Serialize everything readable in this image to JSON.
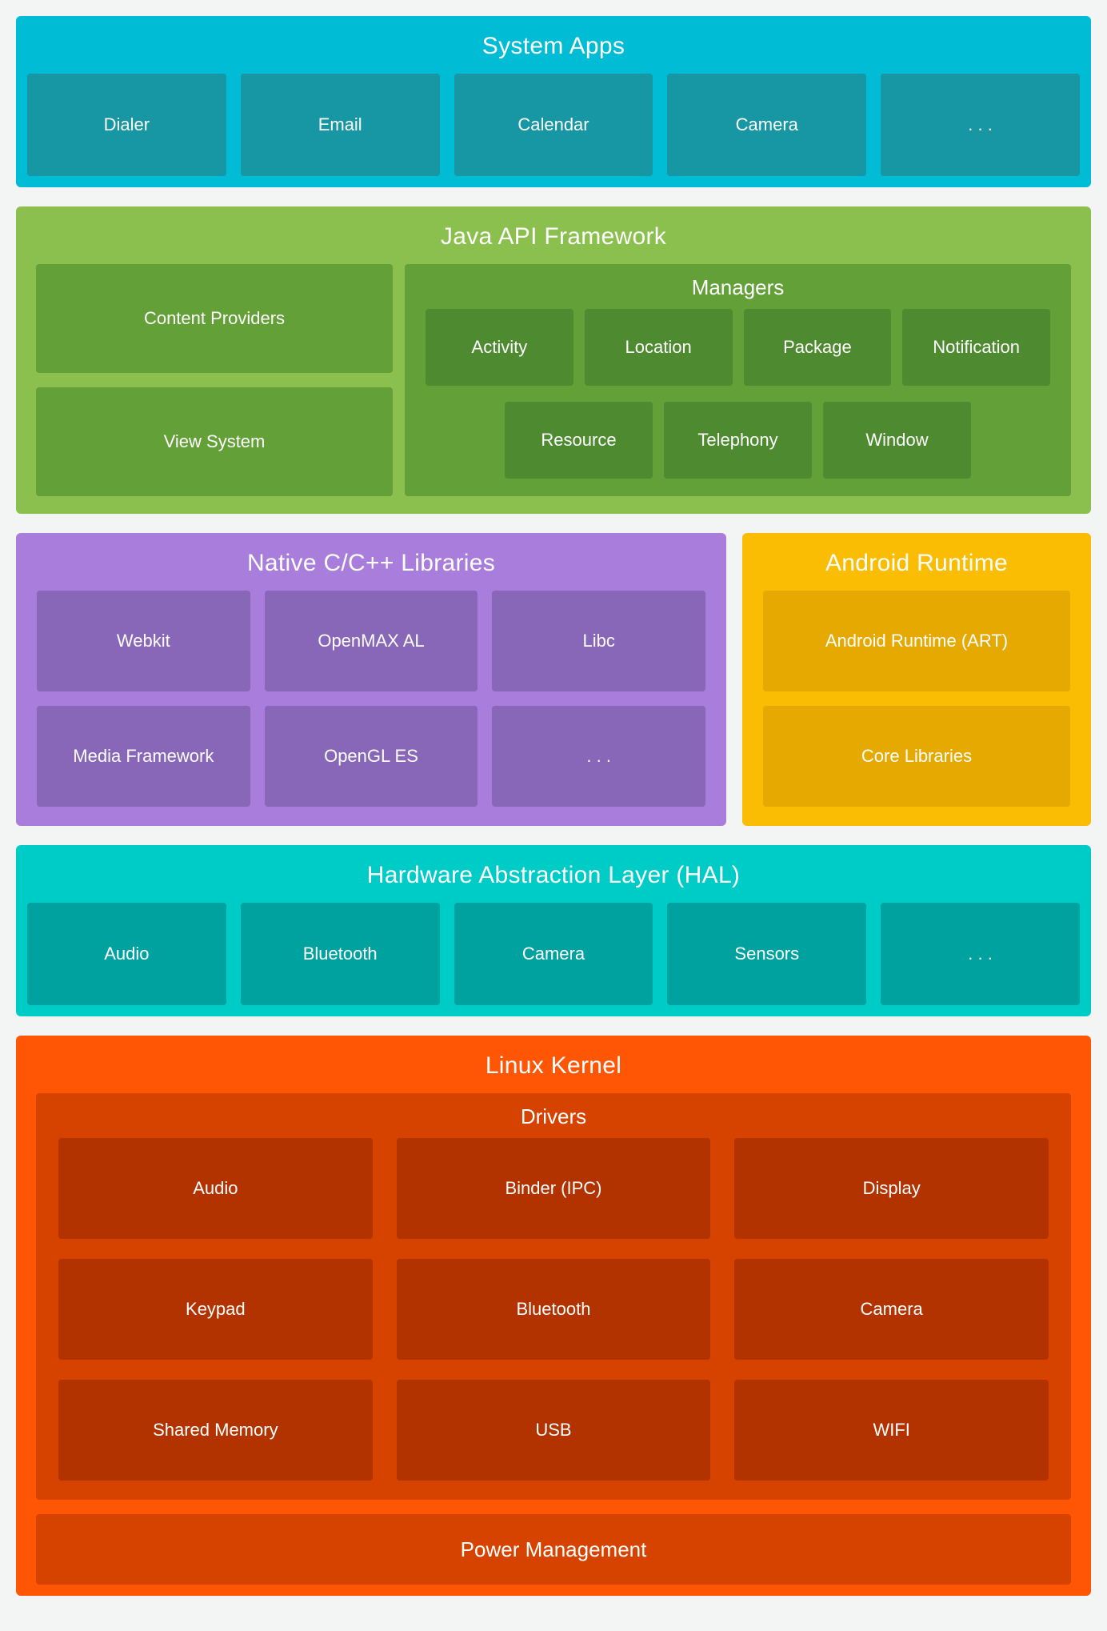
{
  "page": {
    "background": "#F3F4F4"
  },
  "system_apps": {
    "title": "System Apps",
    "colors": {
      "bg": "#00BCD4",
      "box": "#1697A3"
    },
    "boxes": [
      "Dialer",
      "Email",
      "Calendar",
      "Camera",
      ". . ."
    ]
  },
  "java_api": {
    "title": "Java API Framework",
    "colors": {
      "bg": "#8BC04E",
      "box": "#64A038",
      "inner_box": "#4E8A2F"
    },
    "left_boxes": [
      "Content Providers",
      "View System"
    ],
    "managers": {
      "title": "Managers",
      "row1": [
        "Activity",
        "Location",
        "Package",
        "Notification"
      ],
      "row2": [
        "Resource",
        "Telephony",
        "Window"
      ]
    }
  },
  "native_libs": {
    "title": "Native C/C++ Libraries",
    "colors": {
      "bg": "#A97DDB",
      "box": "#8866B8"
    },
    "boxes": [
      "Webkit",
      "OpenMAX AL",
      "Libc",
      "Media Framework",
      "OpenGL ES",
      ". . ."
    ]
  },
  "android_runtime": {
    "title": "Android Runtime",
    "colors": {
      "bg": "#FBBC04",
      "box": "#E6A902"
    },
    "boxes": [
      "Android Runtime (ART)",
      "Core Libraries"
    ]
  },
  "hal": {
    "title": "Hardware Abstraction Layer (HAL)",
    "colors": {
      "bg": "#00CCC7",
      "box": "#00A29F"
    },
    "boxes": [
      "Audio",
      "Bluetooth",
      "Camera",
      "Sensors",
      ". . ."
    ]
  },
  "linux_kernel": {
    "title": "Linux Kernel",
    "colors": {
      "bg": "#FF5605",
      "box": "#D64200",
      "inner_box": "#B23300"
    },
    "drivers": {
      "title": "Drivers",
      "boxes": [
        "Audio",
        "Binder (IPC)",
        "Display",
        "Keypad",
        "Bluetooth",
        "Camera",
        "Shared Memory",
        "USB",
        "WIFI"
      ]
    },
    "power_label": "Power Management"
  }
}
